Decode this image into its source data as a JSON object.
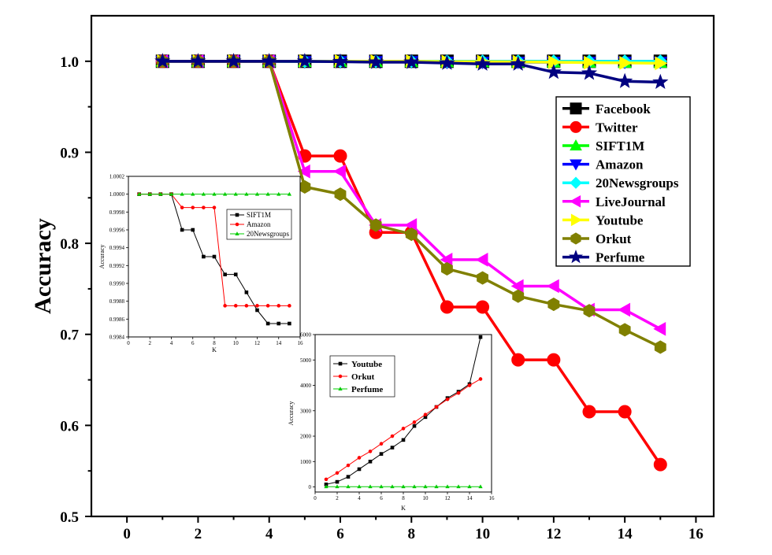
{
  "chart_data": [
    {
      "type": "line",
      "title": "",
      "xlabel": "",
      "ylabel": "Accuracy",
      "xlim": [
        -1,
        16.5
      ],
      "ylim": [
        0.5,
        1.05
      ],
      "xticks": [
        "0",
        "2",
        "4",
        "6",
        "8",
        "10",
        "12",
        "14",
        "16"
      ],
      "yticks": [
        "0.5",
        "0.6",
        "0.7",
        "0.8",
        "0.9",
        "1.0"
      ],
      "legend": "right",
      "x": [
        1,
        2,
        3,
        4,
        5,
        6,
        7,
        8,
        9,
        10,
        11,
        12,
        13,
        14,
        15
      ],
      "series": [
        {
          "name": "Facebook",
          "color": "#000000",
          "marker": "square",
          "values": [
            1.0,
            1.0,
            1.0,
            1.0,
            1.0,
            1.0,
            1.0,
            1.0,
            1.0,
            1.0,
            1.0,
            1.0,
            1.0,
            1.0,
            1.0
          ]
        },
        {
          "name": "Twitter",
          "color": "#ff0000",
          "marker": "circle",
          "values": [
            1.0,
            1.0,
            1.0,
            1.0,
            0.896,
            0.896,
            0.812,
            0.812,
            0.73,
            0.73,
            0.672,
            0.672,
            0.615,
            0.615,
            0.557
          ]
        },
        {
          "name": "SIFT1M",
          "color": "#00ff00",
          "marker": "triangle-up",
          "values": [
            1.0,
            1.0,
            1.0,
            1.0,
            0.9998,
            0.9998,
            0.9996,
            0.9996,
            0.9994,
            0.9994,
            0.9992,
            0.9991,
            0.999,
            0.9988,
            0.9988
          ]
        },
        {
          "name": "Amazon",
          "color": "#0000ff",
          "marker": "triangle-down",
          "values": [
            1.0,
            1.0,
            1.0,
            1.0,
            0.9997,
            0.9997,
            0.9997,
            0.9997,
            0.999,
            0.999,
            0.999,
            0.999,
            0.999,
            0.999,
            0.999
          ]
        },
        {
          "name": "20Newsgroups",
          "color": "#00ffff",
          "marker": "diamond",
          "values": [
            1.0,
            1.0,
            1.0,
            1.0,
            1.0,
            1.0,
            1.0,
            1.0,
            1.0,
            1.0,
            1.0,
            1.0,
            1.0,
            1.0,
            1.0
          ]
        },
        {
          "name": "LiveJournal",
          "color": "#ff00ff",
          "marker": "triangle-left",
          "values": [
            1.0,
            1.0,
            1.0,
            1.0,
            0.879,
            0.879,
            0.82,
            0.82,
            0.782,
            0.782,
            0.753,
            0.753,
            0.727,
            0.727,
            0.706
          ]
        },
        {
          "name": "Youtube",
          "color": "#ffff00",
          "marker": "triangle-right",
          "values": [
            1.0,
            1.0,
            1.0,
            1.0,
            1.0,
            1.0,
            1.0,
            1.0,
            0.9995,
            0.9995,
            0.9993,
            0.999,
            0.9985,
            0.9982,
            0.9978
          ]
        },
        {
          "name": "Orkut",
          "color": "#808000",
          "marker": "hexagon",
          "values": [
            1.0,
            1.0,
            1.0,
            1.0,
            0.862,
            0.854,
            0.82,
            0.81,
            0.772,
            0.762,
            0.742,
            0.733,
            0.726,
            0.705,
            0.686
          ]
        },
        {
          "name": "Perfume",
          "color": "#000080",
          "marker": "star",
          "values": [
            1.0,
            1.0,
            1.0,
            1.0,
            1.0,
            0.9995,
            0.999,
            0.999,
            0.998,
            0.997,
            0.997,
            0.988,
            0.987,
            0.978,
            0.977
          ]
        }
      ]
    },
    {
      "type": "line",
      "title": "",
      "xlabel": "K",
      "ylabel": "Accuracy",
      "xlim": [
        0,
        16
      ],
      "ylim": [
        0.9984,
        1.0002
      ],
      "xticks": [
        "0",
        "2",
        "4",
        "6",
        "8",
        "10",
        "12",
        "14",
        "16"
      ],
      "yticks": [
        "0.9984",
        "0.9986",
        "0.9988",
        "0.9990",
        "0.9992",
        "0.9994",
        "0.9996",
        "0.9998",
        "1.0000",
        "1.0002"
      ],
      "legend": "top-right",
      "x": [
        1,
        2,
        3,
        4,
        5,
        6,
        7,
        8,
        9,
        10,
        11,
        12,
        13,
        14,
        15
      ],
      "series": [
        {
          "name": "SIFT1M",
          "color": "#000000",
          "marker": "square",
          "values": [
            1.0,
            1.0,
            1.0,
            1.0,
            0.9996,
            0.9996,
            0.9993,
            0.9993,
            0.9991,
            0.9991,
            0.9989,
            0.9987,
            0.99855,
            0.99855,
            0.99855
          ]
        },
        {
          "name": "Amazon",
          "color": "#ff0000",
          "marker": "circle",
          "values": [
            1.0,
            1.0,
            1.0,
            1.0,
            0.99985,
            0.99985,
            0.99985,
            0.99985,
            0.99875,
            0.99875,
            0.99875,
            0.99875,
            0.99875,
            0.99875,
            0.99875
          ]
        },
        {
          "name": "20Newsgroups",
          "color": "#00cc00",
          "marker": "triangle-up",
          "values": [
            1.0,
            1.0,
            1.0,
            1.0,
            1.0,
            1.0,
            1.0,
            1.0,
            1.0,
            1.0,
            1.0,
            1.0,
            1.0,
            1.0,
            1.0
          ]
        }
      ]
    },
    {
      "type": "line",
      "title": "",
      "xlabel": "K",
      "ylabel": "Accuracy",
      "xlim": [
        0,
        16
      ],
      "ylim": [
        -200,
        6000
      ],
      "xticks": [
        "0",
        "2",
        "4",
        "6",
        "8",
        "10",
        "12",
        "14",
        "16"
      ],
      "yticks": [
        "0",
        "1000",
        "2000",
        "3000",
        "4000",
        "5000",
        "6000"
      ],
      "legend": "top-left",
      "x": [
        1,
        2,
        3,
        4,
        5,
        6,
        7,
        8,
        9,
        10,
        11,
        12,
        13,
        14,
        15
      ],
      "series": [
        {
          "name": "Youtube",
          "color": "#000000",
          "marker": "square",
          "values": [
            100,
            200,
            400,
            700,
            1000,
            1300,
            1550,
            1850,
            2400,
            2750,
            3150,
            3500,
            3750,
            4050,
            5900
          ]
        },
        {
          "name": "Orkut",
          "color": "#ff0000",
          "marker": "circle",
          "values": [
            300,
            550,
            850,
            1150,
            1400,
            1700,
            2000,
            2300,
            2550,
            2850,
            3150,
            3450,
            3700,
            4000,
            4250
          ]
        },
        {
          "name": "Perfume",
          "color": "#00cc00",
          "marker": "triangle-up",
          "values": [
            10,
            10,
            10,
            10,
            10,
            10,
            10,
            10,
            10,
            10,
            10,
            10,
            10,
            10,
            10
          ]
        }
      ]
    }
  ]
}
